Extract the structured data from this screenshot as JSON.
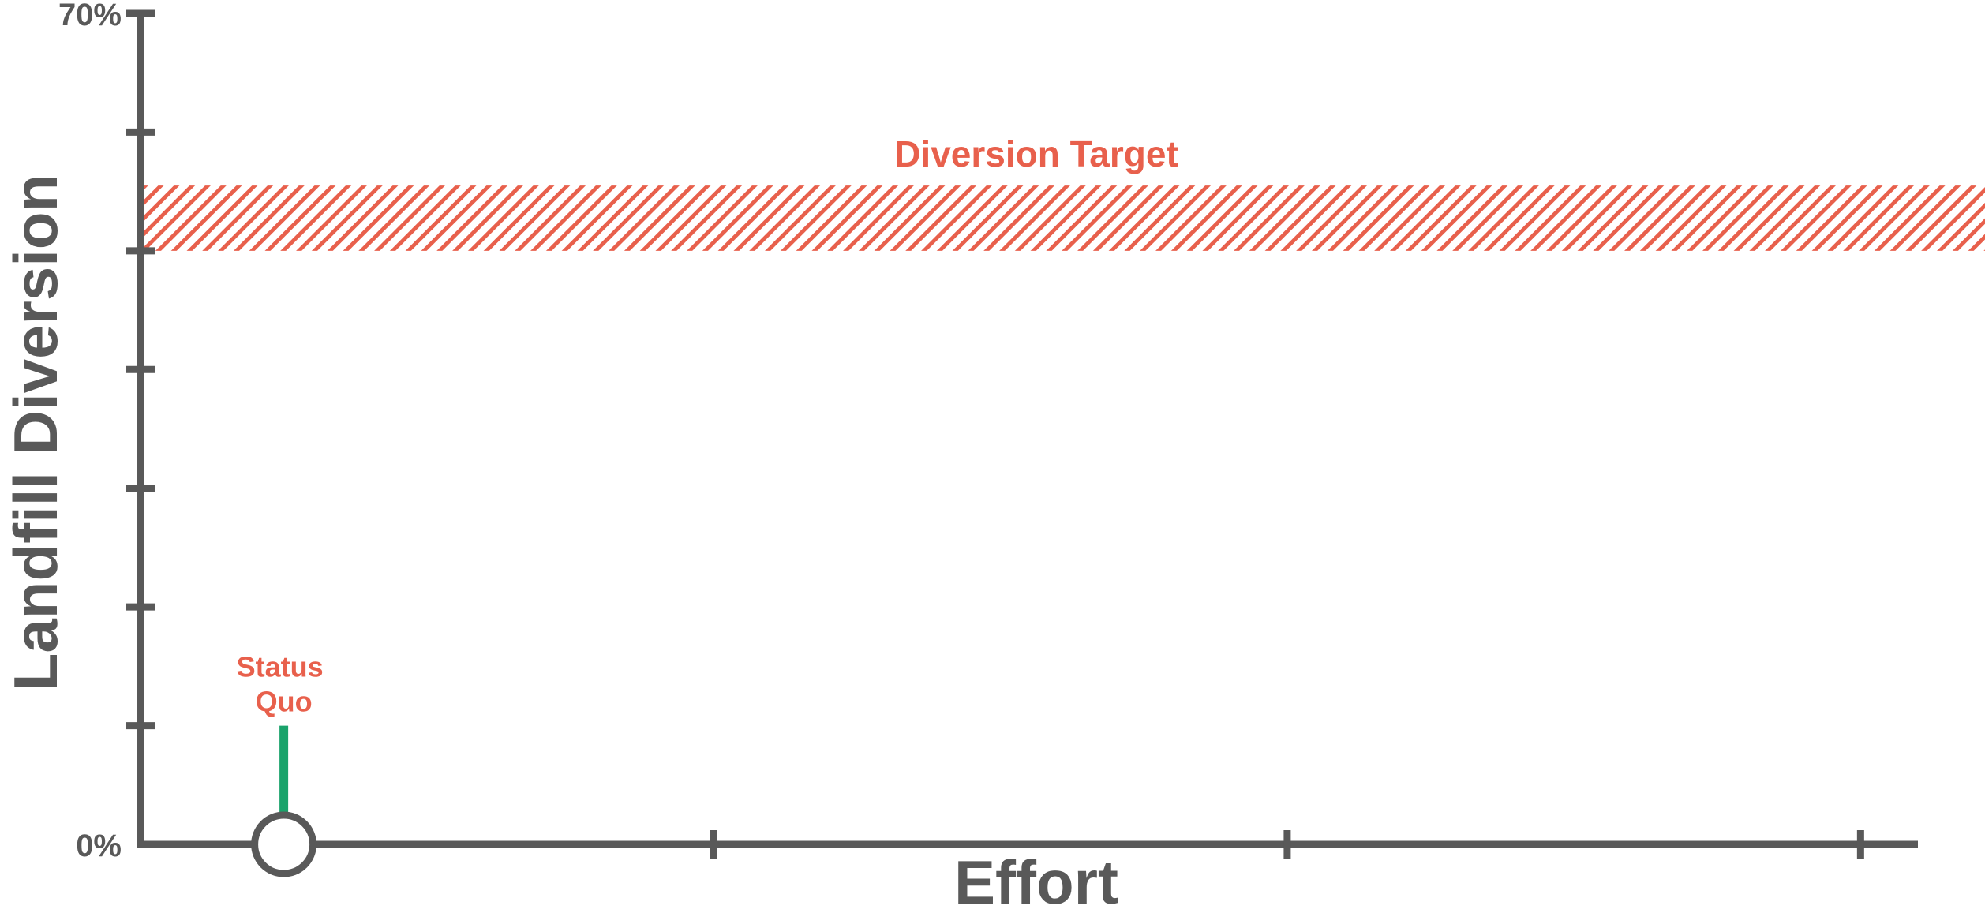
{
  "chart_data": {
    "type": "line",
    "title": "",
    "xlabel": "Effort",
    "ylabel": "Landfill Diversion",
    "ylim": [
      0,
      70
    ],
    "yticks": [
      0,
      10,
      20,
      30,
      40,
      50,
      60,
      70
    ],
    "ytick_labels": [
      {
        "value": 0,
        "label": "0%"
      },
      {
        "value": 70,
        "label": "70%"
      }
    ],
    "xlim": [
      0,
      6.2
    ],
    "xticks": [
      2,
      4,
      6
    ],
    "grid": false,
    "target_band": {
      "label": "Diversion Target",
      "from": 50,
      "to": 55.5
    },
    "points": [
      {
        "label": "Status Quo",
        "x": 0.5,
        "y": 0,
        "stem_top": 10
      }
    ],
    "colors": {
      "axis": "#595959",
      "accent": "#e8604c",
      "stem": "#1aa36b"
    }
  }
}
